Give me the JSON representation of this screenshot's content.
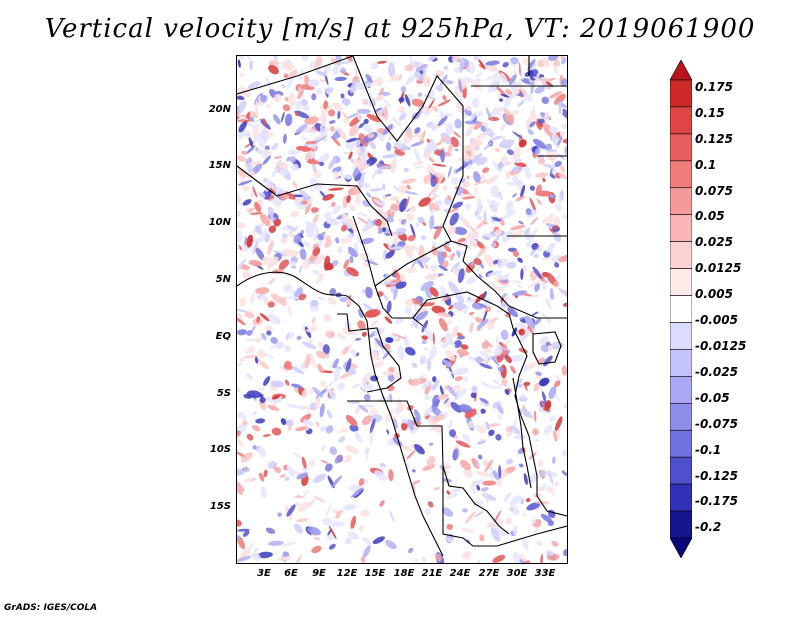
{
  "title": "Vertical velocity [m/s] at 925hPa, VT: 2019061900",
  "credit": "GrADS: IGES/COLA",
  "map": {
    "lat_labels": [
      "20N",
      "15N",
      "10N",
      "5N",
      "EQ",
      "5S",
      "10S",
      "15S"
    ],
    "lon_labels": [
      "3E",
      "6E",
      "9E",
      "12E",
      "15E",
      "18E",
      "21E",
      "24E",
      "27E",
      "30E",
      "33E"
    ]
  },
  "colorbar": {
    "labels": [
      "0.175",
      "0.15",
      "0.125",
      "0.1",
      "0.075",
      "0.05",
      "0.025",
      "0.0125",
      "0.005",
      "-0.005",
      "-0.0125",
      "-0.025",
      "-0.05",
      "-0.075",
      "-0.1",
      "-0.125",
      "-0.175",
      "-0.2"
    ],
    "colors": [
      "#b8141c",
      "#cf2a2a",
      "#de4545",
      "#e85d5d",
      "#ef7b7b",
      "#f59a9a",
      "#fab6b6",
      "#fdd2d2",
      "#ffeaea",
      "#ffffff",
      "#dcdcff",
      "#c4c4fb",
      "#a8a8f4",
      "#8e8ee9",
      "#7272df",
      "#5050cc",
      "#3030b8",
      "#16168f",
      "#08087a"
    ]
  }
}
